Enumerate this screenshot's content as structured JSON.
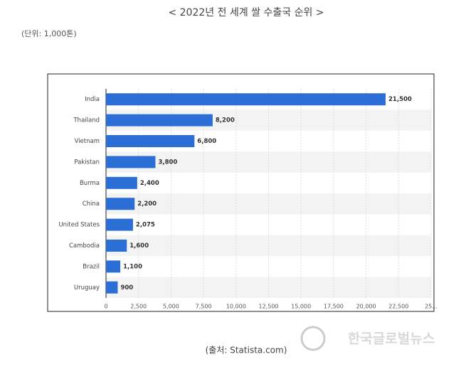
{
  "chart_data": {
    "type": "bar",
    "orientation": "horizontal",
    "title": "< 2022년 전 세계 쌀 수출국 순위 >",
    "subtitle": "(단위: 1,000톤)",
    "source": "(출처: Statista.com)",
    "watermark": "한국글로벌뉴스",
    "categories": [
      "India",
      "Thailand",
      "Vietnam",
      "Pakistan",
      "Burma",
      "China",
      "United States",
      "Cambodia",
      "Brazil",
      "Uruguay"
    ],
    "values": [
      21500,
      8200,
      6800,
      3800,
      2400,
      2200,
      2075,
      1600,
      1100,
      900
    ],
    "value_labels": [
      "21,500",
      "8,200",
      "6,800",
      "3,800",
      "2,400",
      "2,200",
      "2,075",
      "1,600",
      "1,100",
      "900"
    ],
    "color": "#2b6fd6",
    "xlim": [
      0,
      25000
    ],
    "xticks": [
      0,
      {
        "value": 2500,
        "label": "2,500"
      },
      {
        "value": 5000,
        "label": "5,000"
      },
      {
        "value": 7500,
        "label": "7,500"
      },
      {
        "value": 10000,
        "label": "10,000"
      },
      {
        "value": 12500,
        "label": "12,500"
      },
      {
        "value": 15000,
        "label": "15,000"
      },
      {
        "value": 17500,
        "label": "17,500"
      },
      {
        "value": 20000,
        "label": "20,000"
      },
      {
        "value": 22500,
        "label": "22,500"
      },
      {
        "value": 25000,
        "label": "25..."
      }
    ],
    "grid": true
  }
}
